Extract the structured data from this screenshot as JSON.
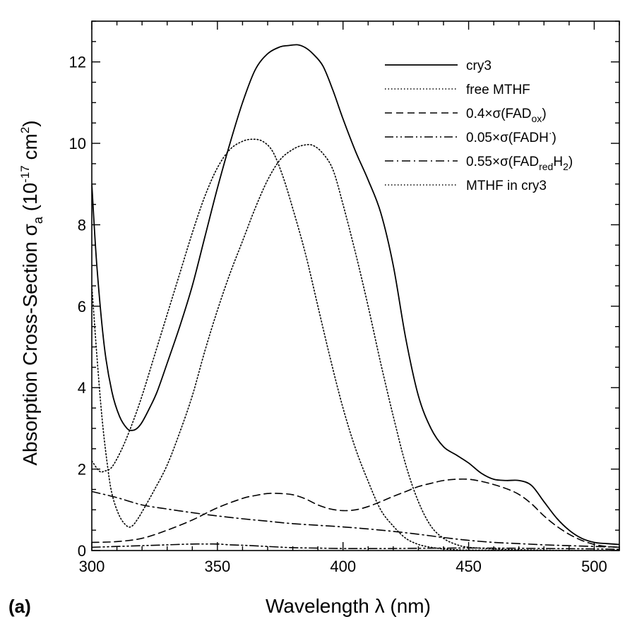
{
  "chart_data": {
    "type": "line",
    "panel_label": "(a)",
    "xlabel": "Wavelength λ (nm)",
    "ylabel": "Absorption Cross-Section σa (10−17 cm2)",
    "ylabel_parts": {
      "main": "Absorption Cross-Section σ",
      "sub": "a",
      "unit_open": " (10",
      "unit_sup": "-17",
      "unit_mid": " cm",
      "unit_sup2": "2",
      "unit_close": ")"
    },
    "xlim": [
      300,
      510
    ],
    "ylim": [
      0,
      13
    ],
    "xticks": [
      300,
      350,
      400,
      450,
      500
    ],
    "yticks": [
      0,
      2,
      4,
      6,
      8,
      10,
      12
    ],
    "xminor_step": 10,
    "yminor_step": 0.5,
    "grid": false,
    "legend_position": "top-right",
    "series": [
      {
        "name": "cry3",
        "style": "solid",
        "legend": {
          "text": "cry3"
        },
        "x": [
          300,
          302,
          305,
          308,
          311,
          314,
          316,
          318,
          320,
          323,
          326,
          330,
          335,
          340,
          345,
          350,
          355,
          360,
          365,
          370,
          375,
          378,
          382,
          385,
          388,
          392,
          396,
          400,
          405,
          410,
          415,
          420,
          425,
          430,
          435,
          440,
          445,
          450,
          455,
          460,
          465,
          470,
          475,
          480,
          485,
          490,
          495,
          500,
          505,
          510
        ],
        "y": [
          9.0,
          7.0,
          5.0,
          3.9,
          3.3,
          3.0,
          2.95,
          3.0,
          3.15,
          3.5,
          3.9,
          4.6,
          5.5,
          6.5,
          7.7,
          8.9,
          10.0,
          11.0,
          11.8,
          12.2,
          12.37,
          12.4,
          12.42,
          12.35,
          12.2,
          11.9,
          11.3,
          10.6,
          9.8,
          9.1,
          8.3,
          7.0,
          5.2,
          3.8,
          3.0,
          2.55,
          2.35,
          2.15,
          1.9,
          1.75,
          1.72,
          1.72,
          1.6,
          1.2,
          0.8,
          0.5,
          0.3,
          0.2,
          0.17,
          0.15
        ]
      },
      {
        "name": "free MTHF",
        "style": "dot",
        "legend": {
          "text": "free MTHF"
        },
        "x": [
          300,
          303,
          305,
          308,
          312,
          316,
          320,
          325,
          330,
          335,
          340,
          345,
          350,
          355,
          360,
          364,
          368,
          372,
          376,
          380,
          385,
          390,
          395,
          400,
          405,
          410,
          415,
          420,
          425,
          430,
          435,
          440,
          445,
          450,
          460,
          470,
          480,
          490,
          500,
          510
        ],
        "y": [
          2.2,
          1.95,
          1.95,
          2.05,
          2.5,
          3.1,
          3.8,
          4.8,
          5.8,
          6.8,
          7.8,
          8.7,
          9.4,
          9.85,
          10.05,
          10.1,
          10.05,
          9.8,
          9.2,
          8.4,
          7.3,
          6.0,
          4.7,
          3.5,
          2.5,
          1.7,
          1.0,
          0.6,
          0.3,
          0.15,
          0.08,
          0.04,
          0.02,
          0.01,
          0.01,
          0.0,
          0.0,
          0.0,
          0.0,
          0.0
        ]
      },
      {
        "name": "0.4×σ(FADox)",
        "style": "dash",
        "legend": {
          "text": "0.4×σ(FAD",
          "sub": "ox",
          "after": ")"
        },
        "x": [
          300,
          310,
          320,
          330,
          340,
          350,
          360,
          365,
          370,
          375,
          380,
          385,
          390,
          395,
          400,
          405,
          410,
          415,
          420,
          425,
          430,
          435,
          440,
          445,
          450,
          455,
          460,
          465,
          470,
          475,
          480,
          485,
          490,
          495,
          500,
          505,
          510
        ],
        "y": [
          0.2,
          0.22,
          0.3,
          0.5,
          0.75,
          1.05,
          1.28,
          1.35,
          1.4,
          1.4,
          1.37,
          1.27,
          1.12,
          1.02,
          0.98,
          1.0,
          1.08,
          1.2,
          1.33,
          1.45,
          1.57,
          1.65,
          1.72,
          1.75,
          1.75,
          1.7,
          1.62,
          1.52,
          1.38,
          1.15,
          0.85,
          0.6,
          0.4,
          0.25,
          0.15,
          0.1,
          0.08
        ]
      },
      {
        "name": "0.05×σ(FADH·)",
        "style": "dashdotdot",
        "legend": {
          "text": "0.05×σ(FADH",
          "sup": "·",
          "after": ")"
        },
        "x": [
          300,
          310,
          320,
          330,
          340,
          345,
          350,
          355,
          360,
          370,
          380,
          390,
          400,
          420,
          440,
          460,
          480,
          500,
          510
        ],
        "y": [
          0.08,
          0.1,
          0.12,
          0.14,
          0.16,
          0.16,
          0.16,
          0.14,
          0.13,
          0.1,
          0.07,
          0.06,
          0.05,
          0.05,
          0.06,
          0.06,
          0.05,
          0.04,
          0.03
        ]
      },
      {
        "name": "0.55×σ(FADredH2)",
        "style": "dashdot",
        "legend": {
          "text": "0.55×σ(FAD",
          "sub": "red",
          "mid": "H",
          "sub2": "2",
          "after": ")"
        },
        "x": [
          300,
          310,
          320,
          330,
          340,
          350,
          360,
          370,
          380,
          390,
          400,
          410,
          420,
          430,
          440,
          450,
          460,
          470,
          480,
          490,
          500,
          510
        ],
        "y": [
          1.45,
          1.3,
          1.12,
          1.02,
          0.93,
          0.85,
          0.78,
          0.72,
          0.66,
          0.62,
          0.58,
          0.53,
          0.47,
          0.4,
          0.32,
          0.25,
          0.2,
          0.17,
          0.14,
          0.12,
          0.1,
          0.08
        ]
      },
      {
        "name": "MTHF in cry3",
        "style": "dot",
        "legend": {
          "text": "MTHF in cry3"
        },
        "x": [
          300,
          302,
          304,
          306,
          308,
          311,
          314,
          316,
          318,
          320,
          325,
          330,
          335,
          340,
          345,
          350,
          355,
          360,
          365,
          370,
          375,
          380,
          384,
          388,
          392,
          396,
          400,
          405,
          410,
          415,
          420,
          425,
          430,
          435,
          440,
          445,
          450,
          460,
          470,
          480,
          490,
          500,
          510
        ],
        "y": [
          6.5,
          4.8,
          3.3,
          2.2,
          1.4,
          0.85,
          0.6,
          0.6,
          0.75,
          0.95,
          1.5,
          2.1,
          2.9,
          3.8,
          4.9,
          5.9,
          6.8,
          7.6,
          8.4,
          9.1,
          9.6,
          9.85,
          9.95,
          9.95,
          9.75,
          9.35,
          8.5,
          7.3,
          6.0,
          4.6,
          3.3,
          2.1,
          1.2,
          0.6,
          0.3,
          0.15,
          0.08,
          0.04,
          0.02,
          0.01,
          0.0,
          0.0,
          0.0
        ]
      }
    ]
  }
}
